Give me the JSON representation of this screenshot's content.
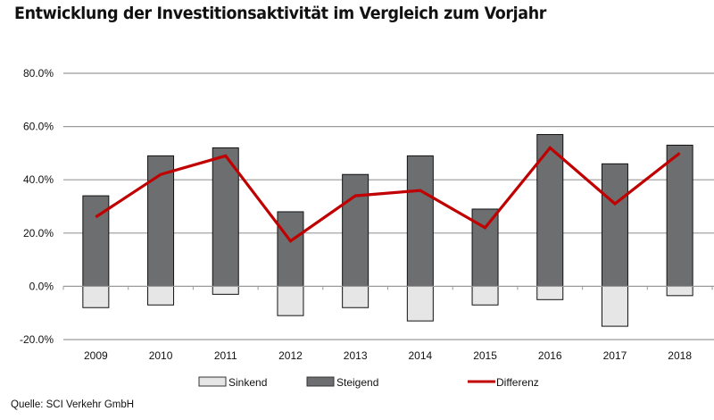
{
  "title": "Entwicklung der Investitionsaktivität  im Vergleich zum Vorjahr",
  "source": "Quelle: SCI Verkehr GmbH",
  "colors": {
    "sinkend": "#e6e6e6",
    "steigend": "#6d6e70",
    "differenz": "#c00000",
    "grid": "#9a9a9a",
    "bar_border": "#111111"
  },
  "chart_data": {
    "type": "bar",
    "title": "Entwicklung der Investitionsaktivität  im Vergleich zum Vorjahr",
    "xlabel": "",
    "ylabel": "",
    "categories": [
      "2009",
      "2010",
      "2011",
      "2012",
      "2013",
      "2014",
      "2015",
      "2016",
      "2017",
      "2018"
    ],
    "series": [
      {
        "name": "Sinkend",
        "type": "bar",
        "values": [
          -8,
          -7,
          -3,
          -11,
          -8,
          -13,
          -7,
          -5,
          -15,
          -3.5
        ]
      },
      {
        "name": "Steigend",
        "type": "bar",
        "values": [
          34,
          49,
          52,
          28,
          42,
          49,
          29,
          57,
          46,
          53
        ]
      },
      {
        "name": "Differenz",
        "type": "line",
        "values": [
          26,
          42,
          49,
          17,
          34,
          36,
          22,
          52,
          31,
          50
        ]
      }
    ],
    "ylim": [
      -20,
      80
    ],
    "yticks": [
      80,
      60,
      40,
      20,
      0,
      -20
    ],
    "ytick_labels": [
      "80.0%",
      "60.0%",
      "40.0%",
      "20.0%",
      "0.0%",
      "-20.0%"
    ],
    "grid": true,
    "legend": [
      "Sinkend",
      "Steigend",
      "Differenz"
    ],
    "legend_position": "bottom"
  }
}
